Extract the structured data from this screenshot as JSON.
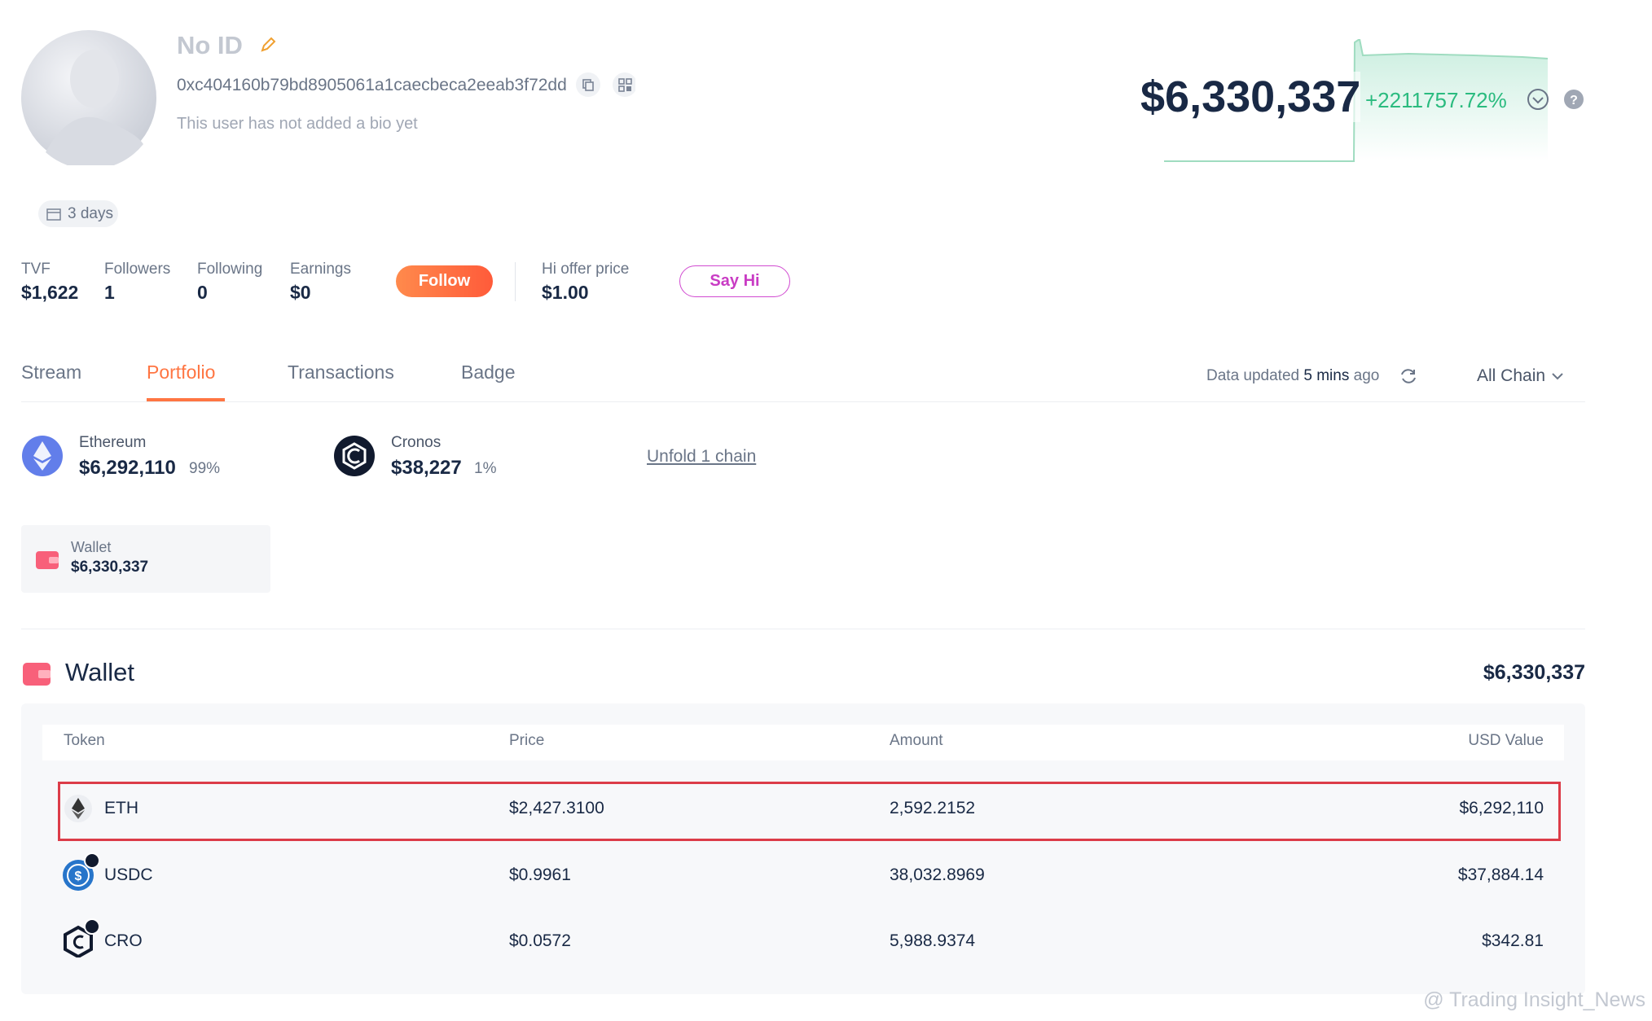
{
  "profile": {
    "name": "No ID",
    "address": "0xc404160b79bd8905061a1caecbeca2eeab3f72dd",
    "bio": "This user has not added a bio yet",
    "age": "3 days"
  },
  "net_worth": {
    "value": "$6,330,337",
    "change": "+2211757.72%"
  },
  "stats": [
    {
      "label": "TVF",
      "value": "$1,622"
    },
    {
      "label": "Followers",
      "value": "1"
    },
    {
      "label": "Following",
      "value": "0"
    },
    {
      "label": "Earnings",
      "value": "$0"
    }
  ],
  "follow_button": "Follow",
  "hi_offer": {
    "label": "Hi offer price",
    "value": "$1.00"
  },
  "say_hi_button": "Say Hi",
  "tabs": [
    "Stream",
    "Portfolio",
    "Transactions",
    "Badge"
  ],
  "data_updated": {
    "prefix": "Data updated",
    "time": "5 mins",
    "suffix": "ago"
  },
  "chain_filter": "All Chain",
  "chains": [
    {
      "name": "Ethereum",
      "value": "$6,292,110",
      "share": "99%"
    },
    {
      "name": "Cronos",
      "value": "$38,227",
      "share": "1%"
    }
  ],
  "unfold": "Unfold 1 chain",
  "wallet_card": {
    "label": "Wallet",
    "value": "$6,330,337"
  },
  "wallet": {
    "title": "Wallet",
    "total": "$6,330,337",
    "columns": [
      "Token",
      "Price",
      "Amount",
      "USD Value"
    ],
    "rows": [
      [
        "ETH",
        "$2,427.3100",
        "2,592.2152",
        "$6,292,110"
      ],
      [
        "USDC",
        "$0.9961",
        "38,032.8969",
        "$37,884.14"
      ],
      [
        "CRO",
        "$0.0572",
        "5,988.9374",
        "$342.81"
      ]
    ]
  },
  "watermark": "@ Trading Insight_News"
}
